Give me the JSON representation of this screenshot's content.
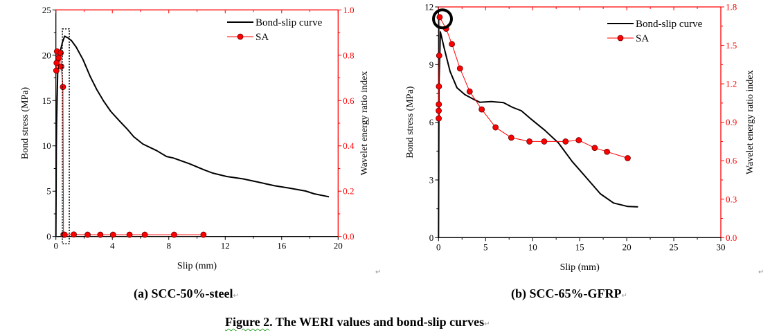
{
  "chart_data": [
    {
      "type": "line",
      "panel": "a",
      "xlabel": "Slip (mm)",
      "ylabel": "Bond stress (MPa)",
      "y2label": "Wavelet energy ratio index",
      "xlim": [
        0,
        20
      ],
      "xticks": [
        0,
        4,
        8,
        12,
        16,
        20
      ],
      "xminor": 2,
      "ylim": [
        0,
        25
      ],
      "yticks": [
        0,
        5,
        10,
        15,
        20,
        25
      ],
      "yminor": 2.5,
      "y2lim": [
        0,
        1.0
      ],
      "y2ticks": [
        "0.0",
        "0.2",
        "0.4",
        "0.6",
        "0.8",
        "1.0"
      ],
      "y2minor": 0.1,
      "legend_position": "top-right",
      "series": [
        {
          "name": "Bond-slip curve",
          "axis": "left",
          "color": "#000000",
          "marker": "none",
          "x": [
            0,
            0.03,
            0.05,
            0.13,
            0.29,
            0.46,
            0.62,
            0.87,
            1.11,
            1.44,
            1.93,
            2.42,
            2.9,
            3.4,
            3.89,
            4.54,
            5.03,
            5.52,
            6.17,
            7.15,
            7.84,
            8.33,
            9.48,
            10.46,
            11.1,
            12.1,
            13.25,
            14.4,
            15.5,
            16.5,
            17.7,
            18.3,
            19.35
          ],
          "y": [
            0,
            9.5,
            12.4,
            18.0,
            20.3,
            21.4,
            22.1,
            21.9,
            21.6,
            20.9,
            19.5,
            17.7,
            16.2,
            14.9,
            13.8,
            12.7,
            11.9,
            11.0,
            10.2,
            9.47,
            8.83,
            8.66,
            8.02,
            7.38,
            7.0,
            6.62,
            6.36,
            5.98,
            5.6,
            5.35,
            5.02,
            4.71,
            4.38
          ]
        },
        {
          "name": "SA",
          "axis": "right",
          "color": "#ff0000",
          "marker": "circle",
          "x": [
            0.03,
            0.05,
            0.08,
            0.2,
            0.34,
            0.38,
            0.5,
            0.54,
            0.62,
            1.27,
            2.25,
            3.15,
            4.05,
            5.22,
            6.3,
            8.38,
            10.46
          ],
          "y": [
            0.732,
            0.766,
            0.817,
            0.788,
            0.81,
            0.75,
            0.66,
            0.008,
            0.008,
            0.009,
            0.008,
            0.008,
            0.008,
            0.008,
            0.008,
            0.008,
            0.008
          ]
        }
      ],
      "annotations": [
        {
          "type": "dotted-box",
          "x": [
            0.46,
            0.95
          ],
          "y": [
            -0.8,
            22.9
          ]
        }
      ]
    },
    {
      "type": "line",
      "panel": "b",
      "xlabel": "Slip (mm)",
      "ylabel": "Bond stress (MPa)",
      "y2label": "Wavelet energy ratio index",
      "xlim": [
        0,
        30
      ],
      "xticks": [
        0,
        5,
        10,
        15,
        20,
        25,
        30
      ],
      "xminor": 2.5,
      "ylim": [
        0,
        12
      ],
      "yticks": [
        0,
        3,
        6,
        9,
        12
      ],
      "yminor": 1.5,
      "y2lim": [
        0,
        1.8
      ],
      "y2ticks": [
        "0.0",
        "0.3",
        "0.6",
        "0.9",
        "1.2",
        "1.5",
        "1.8"
      ],
      "y2minor": 0.15,
      "legend_position": "top-right",
      "series": [
        {
          "name": "Bond-slip curve",
          "axis": "left",
          "color": "#000000",
          "marker": "none",
          "x": [
            0,
            0.05,
            0.2,
            0.61,
            1.23,
            1.96,
            2.8,
            3.7,
            4.4,
            5.6,
            6.9,
            7.85,
            8.8,
            9.8,
            11.3,
            12.75,
            14.2,
            15.7,
            17.2,
            18.6,
            20.1,
            21.2
          ],
          "y": [
            0,
            8.0,
            10.7,
            9.84,
            8.64,
            7.8,
            7.44,
            7.2,
            7.04,
            7.08,
            7.02,
            6.78,
            6.6,
            6.18,
            5.58,
            4.92,
            3.96,
            3.12,
            2.28,
            1.8,
            1.62,
            1.6
          ]
        },
        {
          "name": "SA",
          "axis": "right",
          "color": "#ff0000",
          "marker": "circle",
          "x": [
            0.02,
            0.02,
            0.03,
            0.04,
            0.07,
            0.12,
            0.81,
            1.42,
            2.28,
            3.31,
            4.59,
            6.06,
            7.73,
            9.66,
            11.23,
            13.5,
            14.9,
            16.6,
            17.9,
            20.1
          ],
          "y": [
            0.93,
            0.99,
            1.04,
            1.18,
            1.42,
            1.72,
            1.63,
            1.51,
            1.32,
            1.14,
            1.0,
            0.86,
            0.78,
            0.75,
            0.75,
            0.75,
            0.76,
            0.7,
            0.67,
            0.62
          ]
        }
      ],
      "annotations": [
        {
          "type": "circle-highlight",
          "x": 0.42,
          "y": 11.38
        }
      ]
    }
  ],
  "captions": {
    "a": "(a) SCC-50%-steel",
    "b": "(b) SCC-65%-GFRP",
    "figure_label": "Figure 2",
    "figure_text": ". The WERI values and bond-slip curves",
    "para_mark": "↵"
  }
}
